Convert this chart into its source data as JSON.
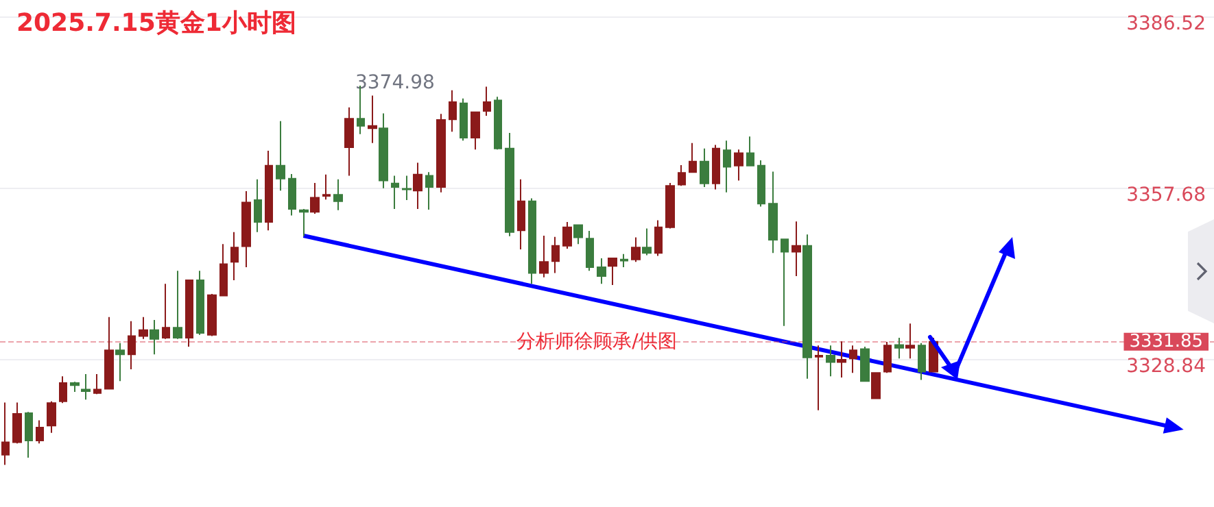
{
  "chart_data": {
    "type": "candlestick",
    "title": "2025.7.15黄金1小时图",
    "categories": [
      null,
      null,
      null,
      null,
      null,
      null,
      null,
      null,
      null,
      null,
      null,
      null,
      null,
      null,
      null,
      null,
      null,
      null,
      null,
      null,
      null,
      null,
      null,
      null,
      null,
      null,
      null,
      null,
      null,
      null,
      null,
      null,
      null,
      null,
      null,
      null,
      null,
      null,
      null,
      null,
      null,
      null,
      null,
      null,
      null,
      null,
      null,
      null,
      null,
      null,
      null,
      null,
      null,
      null,
      null,
      null,
      null,
      null,
      null,
      null,
      null,
      null,
      null,
      null,
      null,
      null,
      null,
      null,
      null,
      null,
      null,
      null,
      null,
      null,
      null,
      null,
      null,
      null,
      null,
      null,
      null,
      null,
      null,
      null,
      null,
      null,
      null,
      null,
      null,
      null,
      null,
      null,
      null,
      null,
      null,
      null,
      null,
      null,
      null,
      null,
      null,
      null,
      null,
      null,
      null,
      null
    ],
    "ohlc": [
      [
        3312.8,
        3321.6,
        3311.1,
        3314.9
      ],
      [
        3314.9,
        3321.6,
        3314.7,
        3319.7
      ],
      [
        3319.8,
        3320.0,
        3312.3,
        3315.2
      ],
      [
        3315.2,
        3318.6,
        3314.7,
        3317.4
      ],
      [
        3317.7,
        3321.8,
        3316.5,
        3321.5
      ],
      [
        3321.8,
        3326.0,
        3321.5,
        3324.9
      ],
      [
        3324.9,
        3325.1,
        3323.4,
        3324.5
      ],
      [
        3323.8,
        3326.4,
        3322.1,
        3323.5
      ],
      [
        3323.2,
        3326.4,
        3323.0,
        3323.8
      ],
      [
        3323.9,
        3336.0,
        3323.8,
        3330.4
      ],
      [
        3330.4,
        3331.6,
        3325.2,
        3329.7
      ],
      [
        3329.7,
        3335.3,
        3327.2,
        3332.8
      ],
      [
        3332.8,
        3336.0,
        3332.3,
        3333.8
      ],
      [
        3333.8,
        3335.5,
        3329.7,
        3332.3
      ],
      [
        3332.5,
        3341.6,
        3332.3,
        3334.2
      ],
      [
        3334.2,
        3343.8,
        3332.3,
        3332.5
      ],
      [
        3332.5,
        3342.3,
        3331.0,
        3342.2
      ],
      [
        3342.2,
        3343.8,
        3333.0,
        3333.3
      ],
      [
        3333.0,
        3339.9,
        3332.8,
        3339.7
      ],
      [
        3339.6,
        3348.3,
        3339.5,
        3344.9
      ],
      [
        3345.3,
        3350.3,
        3342.2,
        3347.7
      ],
      [
        3347.9,
        3357.2,
        3344.4,
        3355.3
      ],
      [
        3355.7,
        3359.2,
        3350.3,
        3352.0
      ],
      [
        3352.0,
        3364.0,
        3350.6,
        3361.5
      ],
      [
        3361.5,
        3369.0,
        3357.3,
        3359.3
      ],
      [
        3359.3,
        3360.1,
        3353.1,
        3354.2
      ],
      [
        3354.0,
        3354.2,
        3349.6,
        3353.7
      ],
      [
        3353.7,
        3358.6,
        3353.4,
        3356.1
      ],
      [
        3356.4,
        3360.0,
        3355.8,
        3356.6
      ],
      [
        3356.6,
        3359.2,
        3354.0,
        3355.5
      ],
      [
        3364.6,
        3371.3,
        3359.8,
        3369.4
      ],
      [
        3369.4,
        3374.98,
        3366.8,
        3368.2
      ],
      [
        3367.8,
        3373.3,
        3365.3,
        3368.2
      ],
      [
        3367.8,
        3370.3,
        3357.7,
        3359.0
      ],
      [
        3358.5,
        3359.8,
        3354.2,
        3357.9
      ],
      [
        3357.6,
        3359.8,
        3355.7,
        3357.5
      ],
      [
        3357.3,
        3362.0,
        3354.2,
        3360.0
      ],
      [
        3359.8,
        3360.4,
        3354.1,
        3357.9
      ],
      [
        3357.9,
        3370.2,
        3357.0,
        3369.2
      ],
      [
        3369.3,
        3374.2,
        3367.2,
        3372.2
      ],
      [
        3372.0,
        3372.8,
        3365.7,
        3366.2
      ],
      [
        3366.2,
        3370.5,
        3364.2,
        3370.5
      ],
      [
        3370.7,
        3374.8,
        3369.9,
        3372.2
      ],
      [
        3372.5,
        3373.1,
        3364.2,
        3364.4
      ],
      [
        3364.4,
        3367.0,
        3349.6,
        3350.3
      ],
      [
        3350.6,
        3359.2,
        3347.4,
        3355.5
      ],
      [
        3355.5,
        3356.0,
        3341.6,
        3343.4
      ],
      [
        3343.4,
        3349.7,
        3342.7,
        3345.3
      ],
      [
        3345.4,
        3349.5,
        3343.4,
        3348.0
      ],
      [
        3348.0,
        3352.0,
        3347.5,
        3351.1
      ],
      [
        3351.5,
        3351.6,
        3348.3,
        3349.4
      ],
      [
        3349.2,
        3350.5,
        3343.8,
        3344.4
      ],
      [
        3344.4,
        3345.9,
        3341.6,
        3342.9
      ],
      [
        3344.6,
        3345.9,
        3341.4,
        3345.9
      ],
      [
        3345.7,
        3346.6,
        3344.4,
        3345.5
      ],
      [
        3345.7,
        3349.4,
        3345.3,
        3347.7
      ],
      [
        3347.7,
        3350.9,
        3346.4,
        3346.8
      ],
      [
        3346.8,
        3352.3,
        3346.3,
        3351.1
      ],
      [
        3351.1,
        3358.6,
        3350.9,
        3358.1
      ],
      [
        3358.3,
        3361.6,
        3358.1,
        3360.3
      ],
      [
        3360.4,
        3365.3,
        3360.4,
        3362.2
      ],
      [
        3362.2,
        3364.4,
        3357.9,
        3358.5
      ],
      [
        3358.5,
        3365.0,
        3357.5,
        3364.4
      ],
      [
        3364.1,
        3365.7,
        3357.0,
        3361.3
      ],
      [
        3361.5,
        3364.2,
        3359.0,
        3363.6
      ],
      [
        3363.6,
        3366.4,
        3361.5,
        3361.5
      ],
      [
        3361.5,
        3362.4,
        3354.6,
        3355.1
      ],
      [
        3355.1,
        3360.5,
        3346.8,
        3349.0
      ],
      [
        3349.1,
        3349.1,
        3334.5,
        3347.0
      ],
      [
        3347.0,
        3352.1,
        3342.9,
        3348.0
      ],
      [
        3348.0,
        3349.9,
        3325.6,
        3329.2
      ],
      [
        3329.3,
        3331.2,
        3320.3,
        3329.5
      ],
      [
        3329.5,
        3331.2,
        3326.0,
        3328.4
      ],
      [
        3328.4,
        3331.9,
        3325.8,
        3328.8
      ],
      [
        3329.0,
        3331.2,
        3326.6,
        3330.4
      ],
      [
        3330.6,
        3331.0,
        3325.1,
        3325.2
      ],
      [
        3322.3,
        3326.6,
        3322.3,
        3326.6
      ],
      [
        3326.8,
        3331.8,
        3326.6,
        3331.2
      ],
      [
        3331.3,
        3332.5,
        3329.0,
        3330.8
      ],
      [
        3330.8,
        3334.9,
        3329.0,
        3331.2
      ],
      [
        3331.2,
        3331.6,
        3325.4,
        3326.8
      ],
      [
        3326.8,
        3332.5,
        3326.8,
        3331.85
      ],
      null,
      null,
      null,
      null,
      null,
      null,
      null,
      null,
      null,
      null,
      null,
      null,
      null,
      null,
      null,
      null,
      null,
      null,
      null,
      null,
      null,
      null,
      null,
      null
    ],
    "colors": [
      "#8b1a1a",
      "#8b1a1a",
      "#3b7d3e",
      "#8b1a1a",
      "#8b1a1a",
      "#8b1a1a",
      "#3b7d3e",
      "#3b7d3e",
      "#8b1a1a",
      "#8b1a1a",
      "#3b7d3e",
      "#8b1a1a",
      "#8b1a1a",
      "#3b7d3e",
      "#8b1a1a",
      "#3b7d3e",
      "#8b1a1a",
      "#3b7d3e",
      "#8b1a1a",
      "#8b1a1a",
      "#8b1a1a",
      "#8b1a1a",
      "#3b7d3e",
      "#8b1a1a",
      "#3b7d3e",
      "#3b7d3e",
      "#3b7d3e",
      "#8b1a1a",
      "#8b1a1a",
      "#3b7d3e",
      "#8b1a1a",
      "#3b7d3e",
      "#8b1a1a",
      "#3b7d3e",
      "#3b7d3e",
      "#3b7d3e",
      "#8b1a1a",
      "#3b7d3e",
      "#8b1a1a",
      "#8b1a1a",
      "#3b7d3e",
      "#8b1a1a",
      "#8b1a1a",
      "#3b7d3e",
      "#3b7d3e",
      "#8b1a1a",
      "#3b7d3e",
      "#8b1a1a",
      "#8b1a1a",
      "#8b1a1a",
      "#3b7d3e",
      "#3b7d3e",
      "#3b7d3e",
      "#8b1a1a",
      "#3b7d3e",
      "#8b1a1a",
      "#3b7d3e",
      "#8b1a1a",
      "#8b1a1a",
      "#8b1a1a",
      "#8b1a1a",
      "#3b7d3e",
      "#8b1a1a",
      "#3b7d3e",
      "#8b1a1a",
      "#3b7d3e",
      "#3b7d3e",
      "#3b7d3e",
      "#3b7d3e",
      "#8b1a1a",
      "#3b7d3e",
      "#8b1a1a",
      "#3b7d3e",
      "#8b1a1a",
      "#8b1a1a",
      "#3b7d3e",
      "#8b1a1a",
      "#8b1a1a",
      "#3b7d3e",
      "#8b1a1a",
      "#3b7d3e",
      "#8b1a1a",
      null,
      null,
      null,
      null,
      null,
      null,
      null,
      null,
      null,
      null,
      null,
      null,
      null,
      null,
      null,
      null,
      null,
      null,
      null,
      null,
      null,
      null,
      null,
      null
    ],
    "series": [
      {
        "type": "line",
        "color": "#0000ff",
        "marker": "triangle",
        "values": [
          null,
          null,
          null,
          null,
          null,
          null,
          null,
          null,
          null,
          null,
          null,
          null,
          null,
          null,
          null,
          null,
          null,
          null,
          null,
          null,
          null,
          null,
          null,
          null,
          null,
          null,
          3349.7,
          null,
          null,
          null,
          null,
          null,
          null,
          null,
          null,
          null,
          null,
          null,
          null,
          null,
          null,
          null,
          null,
          null,
          null,
          null,
          null,
          null,
          null,
          null,
          null,
          null,
          null,
          null,
          null,
          null,
          null,
          null,
          null,
          null,
          null,
          null,
          null,
          null,
          null,
          null,
          null,
          null,
          null,
          null,
          null,
          null,
          null,
          null,
          null,
          null,
          null,
          null,
          null,
          null,
          null,
          null,
          null,
          null,
          null,
          null,
          null,
          null,
          null,
          null,
          null,
          null,
          null,
          null,
          null,
          null,
          null,
          null,
          null,
          null,
          null,
          null,
          3317.4,
          null,
          null,
          null
        ]
      }
    ],
    "ylim": [
      3304,
      3389.4
    ],
    "yticks": [
      3386.52,
      3357.68,
      3328.84
    ],
    "grid": "y",
    "tick_labels": "y",
    "ref_lines": [
      {
        "axis": "y",
        "value": 3331.85,
        "label": "3331.85",
        "color": "#d9495a",
        "line_style": "dashed"
      }
    ],
    "annotations": [
      "分析师徐顾承/供图",
      "3374.98"
    ]
  }
}
